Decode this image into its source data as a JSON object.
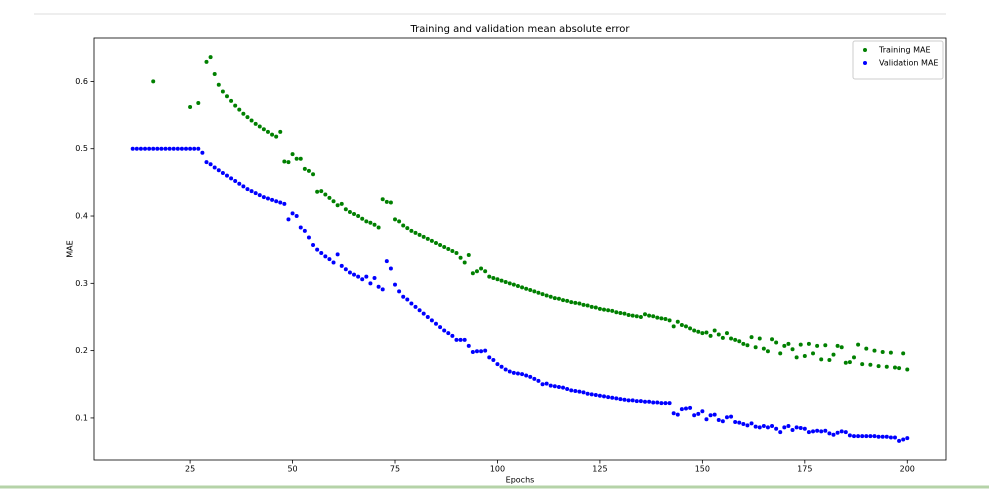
{
  "chart_data": {
    "type": "scatter",
    "title": "Training and validation mean absolute error",
    "x_label": "Epochs",
    "y_label": "MAE",
    "x": [
      11,
      12,
      13,
      14,
      15,
      16,
      17,
      18,
      19,
      20,
      21,
      22,
      23,
      24,
      25,
      26,
      27,
      28,
      29,
      30,
      31,
      32,
      33,
      34,
      35,
      36,
      37,
      38,
      39,
      40,
      41,
      42,
      43,
      44,
      45,
      46,
      47,
      48,
      49,
      50,
      51,
      52,
      53,
      54,
      55,
      56,
      57,
      58,
      59,
      60,
      61,
      62,
      63,
      64,
      65,
      66,
      67,
      68,
      69,
      70,
      71,
      72,
      73,
      74,
      75,
      76,
      77,
      78,
      79,
      80,
      81,
      82,
      83,
      84,
      85,
      86,
      87,
      88,
      89,
      90,
      91,
      92,
      93,
      94,
      95,
      96,
      97,
      98,
      99,
      100,
      101,
      102,
      103,
      104,
      105,
      106,
      107,
      108,
      109,
      110,
      111,
      112,
      113,
      114,
      115,
      116,
      117,
      118,
      119,
      120,
      121,
      122,
      123,
      124,
      125,
      126,
      127,
      128,
      129,
      130,
      131,
      132,
      133,
      134,
      135,
      136,
      137,
      138,
      139,
      140,
      141,
      142,
      143,
      144,
      145,
      146,
      147,
      148,
      149,
      150,
      151,
      152,
      153,
      154,
      155,
      156,
      157,
      158,
      159,
      160,
      161,
      162,
      163,
      164,
      165,
      166,
      167,
      168,
      169,
      170,
      171,
      172,
      173,
      174,
      175,
      176,
      177,
      178,
      179,
      180,
      181,
      182,
      183,
      184,
      185,
      186,
      187,
      188,
      189,
      190,
      191,
      192,
      193,
      194,
      195,
      196,
      197,
      198,
      199,
      200
    ],
    "series": [
      {
        "name": "Training MAE",
        "color": "#008000",
        "values": [
          null,
          null,
          null,
          null,
          null,
          0.6,
          null,
          null,
          null,
          null,
          null,
          null,
          null,
          null,
          0.562,
          null,
          0.568,
          null,
          0.629,
          0.636,
          0.611,
          0.595,
          0.585,
          0.578,
          0.571,
          0.564,
          0.558,
          0.552,
          0.547,
          0.542,
          0.537,
          0.533,
          0.529,
          0.525,
          0.521,
          0.518,
          0.525,
          0.481,
          0.48,
          0.492,
          0.485,
          0.485,
          0.47,
          0.467,
          0.462,
          0.436,
          0.437,
          0.432,
          0.427,
          0.422,
          0.416,
          0.418,
          0.41,
          0.406,
          0.403,
          0.4,
          0.396,
          0.392,
          0.39,
          0.387,
          0.383,
          0.425,
          0.421,
          0.42,
          0.395,
          0.392,
          0.386,
          0.382,
          0.378,
          0.375,
          0.372,
          0.369,
          0.366,
          0.363,
          0.36,
          0.357,
          0.354,
          0.351,
          0.348,
          0.345,
          0.338,
          0.331,
          0.342,
          0.315,
          0.318,
          0.322,
          0.318,
          0.31,
          0.308,
          0.306,
          0.304,
          0.302,
          0.3,
          0.298,
          0.296,
          0.294,
          0.292,
          0.29,
          0.288,
          0.286,
          0.284,
          0.282,
          0.28,
          0.278,
          0.277,
          0.275,
          0.274,
          0.272,
          0.271,
          0.27,
          0.268,
          0.267,
          0.265,
          0.264,
          0.262,
          0.261,
          0.26,
          0.259,
          0.257,
          0.256,
          0.255,
          0.253,
          0.252,
          0.251,
          0.25,
          0.254,
          0.252,
          0.251,
          0.249,
          0.248,
          0.247,
          0.245,
          0.236,
          0.243,
          0.238,
          0.236,
          0.233,
          0.23,
          0.228,
          0.226,
          0.227,
          0.222,
          0.23,
          0.224,
          0.219,
          0.226,
          0.218,
          0.216,
          0.214,
          0.21,
          0.208,
          0.22,
          0.205,
          0.218,
          0.203,
          0.199,
          0.217,
          0.212,
          0.196,
          0.207,
          0.21,
          0.202,
          0.19,
          0.209,
          0.192,
          0.21,
          0.196,
          0.207,
          0.187,
          0.208,
          0.186,
          0.194,
          0.207,
          0.205,
          0.182,
          0.183,
          0.19,
          0.209,
          0.18,
          0.203,
          0.179,
          0.2,
          0.177,
          0.198,
          0.176,
          0.197,
          0.175,
          0.174,
          0.196,
          0.172
        ]
      },
      {
        "name": "Validation MAE",
        "color": "#0000ff",
        "values": [
          0.5,
          0.5,
          0.5,
          0.5,
          0.5,
          0.5,
          0.5,
          0.5,
          0.5,
          0.5,
          0.5,
          0.5,
          0.5,
          0.5,
          0.5,
          0.5,
          0.5,
          0.494,
          0.48,
          0.477,
          0.472,
          0.468,
          0.464,
          0.46,
          0.456,
          0.452,
          0.448,
          0.444,
          0.44,
          0.437,
          0.434,
          0.431,
          0.428,
          0.426,
          0.424,
          0.422,
          0.42,
          0.418,
          0.395,
          0.404,
          0.4,
          0.383,
          0.378,
          0.368,
          0.357,
          0.35,
          0.345,
          0.34,
          0.336,
          0.331,
          0.343,
          0.326,
          0.321,
          0.316,
          0.313,
          0.31,
          0.306,
          0.31,
          0.3,
          0.308,
          0.295,
          0.291,
          0.333,
          0.322,
          0.298,
          0.288,
          0.28,
          0.276,
          0.27,
          0.265,
          0.26,
          0.255,
          0.25,
          0.245,
          0.24,
          0.235,
          0.23,
          0.226,
          0.222,
          0.216,
          0.216,
          0.216,
          0.207,
          0.198,
          0.199,
          0.199,
          0.2,
          0.19,
          0.186,
          0.18,
          0.176,
          0.172,
          0.169,
          0.167,
          0.166,
          0.165,
          0.163,
          0.161,
          0.158,
          0.155,
          0.15,
          0.151,
          0.148,
          0.147,
          0.146,
          0.145,
          0.143,
          0.141,
          0.14,
          0.139,
          0.138,
          0.136,
          0.135,
          0.134,
          0.133,
          0.132,
          0.131,
          0.13,
          0.129,
          0.128,
          0.127,
          0.126,
          0.126,
          0.125,
          0.125,
          0.124,
          0.124,
          0.123,
          0.123,
          0.122,
          0.122,
          0.122,
          0.107,
          0.105,
          0.113,
          0.114,
          0.115,
          0.104,
          0.106,
          0.11,
          0.098,
          0.104,
          0.105,
          0.097,
          0.095,
          0.101,
          0.102,
          0.094,
          0.093,
          0.091,
          0.089,
          0.092,
          0.087,
          0.086,
          0.088,
          0.086,
          0.088,
          0.084,
          0.079,
          0.086,
          0.088,
          0.082,
          0.086,
          0.085,
          0.084,
          0.079,
          0.08,
          0.081,
          0.08,
          0.081,
          0.077,
          0.075,
          0.078,
          0.08,
          0.079,
          0.074,
          0.073,
          0.073,
          0.073,
          0.073,
          0.073,
          0.073,
          0.072,
          0.072,
          0.072,
          0.071,
          0.071,
          0.066,
          0.068,
          0.07
        ]
      }
    ],
    "xlim": [
      1.55,
      209.45
    ],
    "ylim": [
      0.0375,
      0.6645
    ],
    "xticks": [
      25,
      50,
      75,
      100,
      125,
      150,
      175,
      200
    ],
    "yticks": [
      0.1,
      0.2,
      0.3,
      0.4,
      0.5,
      0.6
    ],
    "legend": "upper right"
  }
}
